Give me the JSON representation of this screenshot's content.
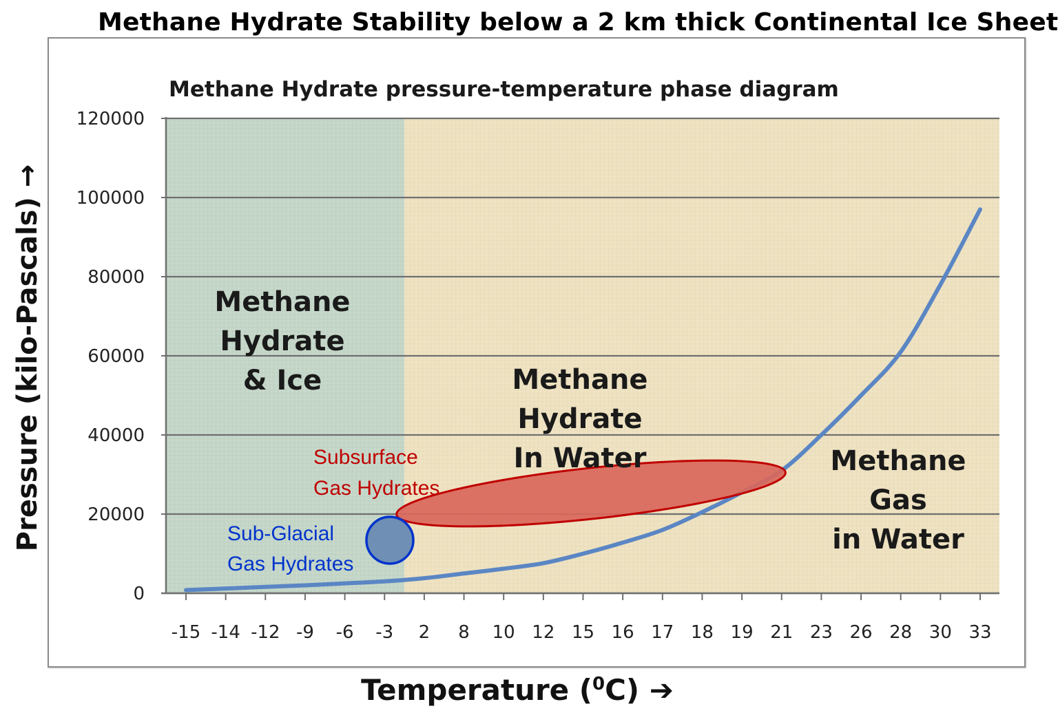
{
  "page": {
    "title": "Methane Hydrate Stability below a 2 km thick Continental Ice Sheet"
  },
  "chart_data": {
    "type": "line",
    "title": "Methane Hydrate pressure-temperature phase diagram",
    "xlabel": "Temperature (",
    "xlabel_sup": "0",
    "xlabel_suffix": "C) ➔",
    "ylabel": "Pressure (kilo-Pascals) →",
    "categories": [
      "-15",
      "-14",
      "-12",
      "-9",
      "-6",
      "-3",
      "2",
      "8",
      "10",
      "12",
      "15",
      "16",
      "17",
      "18",
      "19",
      "21",
      "23",
      "26",
      "28",
      "30",
      "33"
    ],
    "ylim": [
      0,
      120000
    ],
    "yticks": [
      0,
      20000,
      40000,
      60000,
      80000,
      100000,
      120000
    ],
    "grid": true,
    "series": [
      {
        "values": [
          800,
          1200,
          1600,
          2000,
          2500,
          3000,
          3800,
          5000,
          6200,
          7600,
          10000,
          12800,
          16000,
          20500,
          25500,
          31000,
          40000,
          50000,
          61000,
          78000,
          97000
        ],
        "color": "#5b86c4"
      }
    ],
    "regions": [
      {
        "label": [
          "Methane",
          "Hydrate",
          "& Ice"
        ],
        "x_from": "-15",
        "x_to": "-3",
        "color": "#c4d6c8"
      },
      {
        "label": [
          "Methane",
          "Hydrate",
          "In Water"
        ],
        "color": "#ede1c0"
      },
      {
        "label": [
          "Methane",
          "Gas",
          "in Water"
        ],
        "color": "#ede1c0"
      }
    ],
    "annotations": [
      {
        "label": [
          "Subsurface",
          "Gas Hydrates"
        ],
        "color": "#c00000",
        "fill": "#d9675b"
      },
      {
        "label": [
          "Sub-Glacial",
          "Gas Hydrates"
        ],
        "color": "#0033cc",
        "fill": "#6f8fb5"
      }
    ]
  }
}
